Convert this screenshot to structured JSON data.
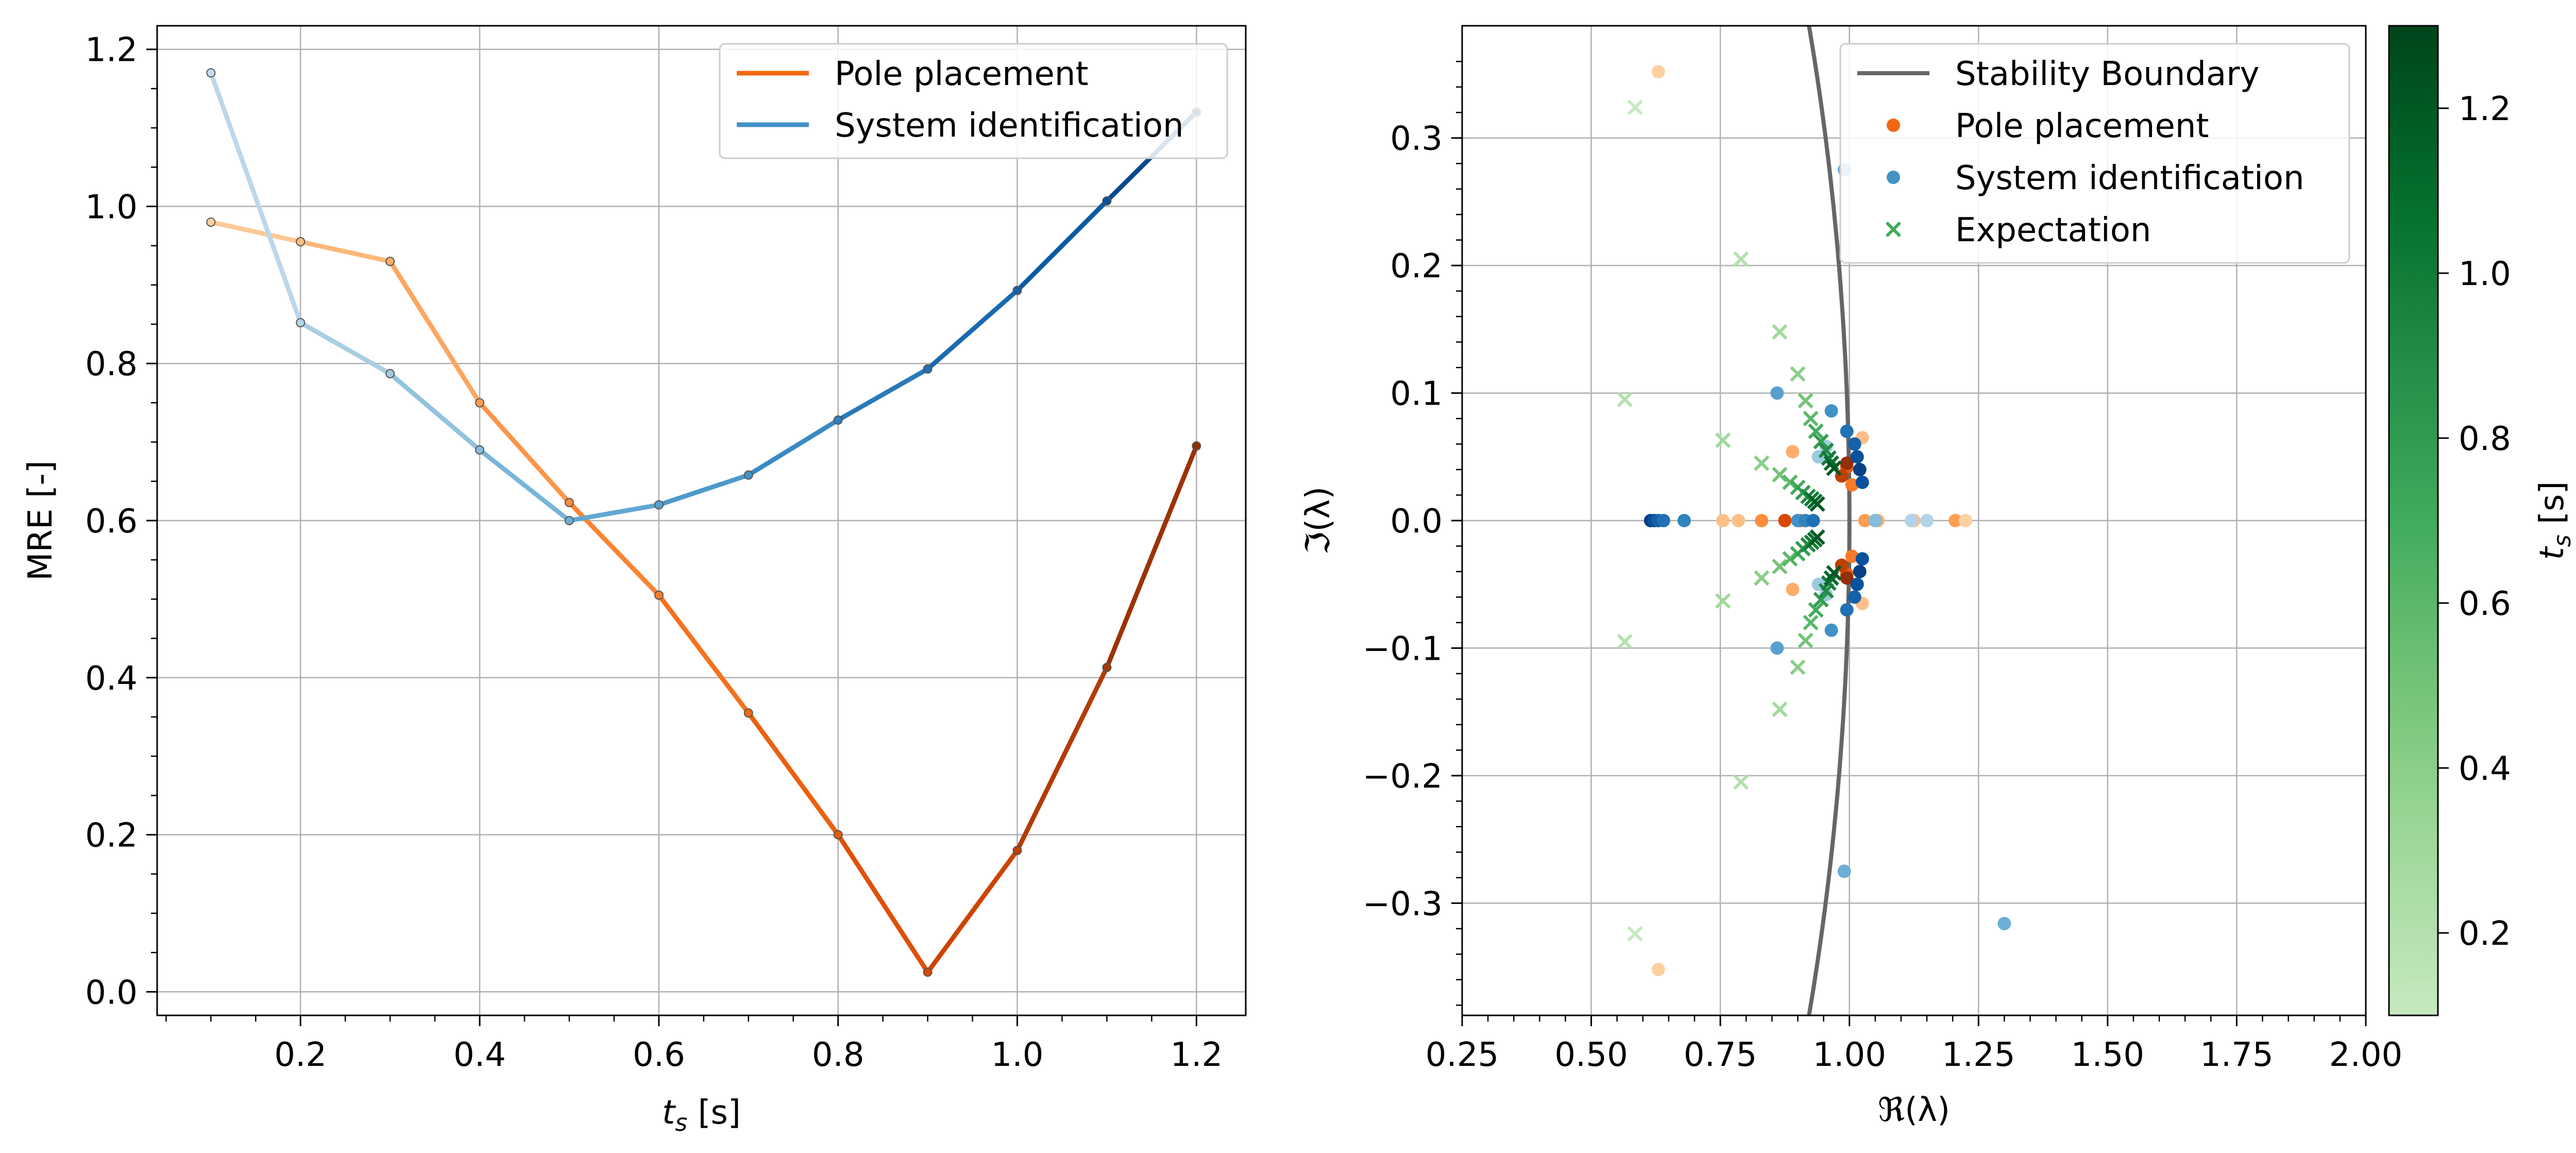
{
  "chart_data": [
    {
      "type": "line",
      "title": "",
      "xlabel": "t_s [s]",
      "ylabel": "MRE [-]",
      "xlim": [
        0.04,
        1.255
      ],
      "ylim": [
        -0.03,
        1.23
      ],
      "xticks": [
        0.2,
        0.4,
        0.6,
        0.8,
        1.0,
        1.2
      ],
      "xtick_labels": [
        "0.2",
        "0.4",
        "0.6",
        "0.8",
        "1.0",
        "1.2"
      ],
      "yticks": [
        0.0,
        0.2,
        0.4,
        0.6,
        0.8,
        1.0,
        1.2
      ],
      "ytick_labels": [
        "0.0",
        "0.2",
        "0.4",
        "0.6",
        "0.8",
        "1.0",
        "1.2"
      ],
      "grid": true,
      "legend_position": "top-right",
      "x": [
        0.1,
        0.2,
        0.3,
        0.4,
        0.5,
        0.6,
        0.7,
        0.8,
        0.9,
        1.0,
        1.1,
        1.2
      ],
      "series": [
        {
          "name": "Pole placement",
          "legend_color": "#f16913",
          "colormap": "Oranges",
          "values": [
            0.98,
            0.955,
            0.93,
            0.75,
            0.623,
            0.505,
            0.355,
            0.2,
            0.025,
            0.18,
            0.413,
            0.695
          ]
        },
        {
          "name": "System identification",
          "legend_color": "#4292c6",
          "colormap": "Blues",
          "values": [
            1.17,
            0.852,
            0.787,
            0.69,
            0.6,
            0.62,
            0.658,
            0.728,
            0.793,
            0.893,
            1.007,
            1.12
          ]
        }
      ]
    },
    {
      "type": "scatter",
      "title": "",
      "xlabel": "ℜ(λ)",
      "ylabel": "ℑ(λ)",
      "xlim": [
        0.25,
        2.0
      ],
      "ylim": [
        -0.388,
        0.388
      ],
      "xticks": [
        0.25,
        0.5,
        0.75,
        1.0,
        1.25,
        1.5,
        1.75,
        2.0
      ],
      "xtick_labels": [
        "0.25",
        "0.50",
        "0.75",
        "1.00",
        "1.25",
        "1.50",
        "1.75",
        "2.00"
      ],
      "yticks": [
        -0.3,
        -0.2,
        -0.1,
        0.0,
        0.1,
        0.2,
        0.3
      ],
      "ytick_labels": [
        "−0.3",
        "−0.2",
        "−0.1",
        "0.0",
        "0.1",
        "0.2",
        "0.3"
      ],
      "grid": true,
      "legend_position": "top-right",
      "stability_boundary": {
        "name": "Stability Boundary",
        "color": "#666666",
        "shape": "unit circle"
      },
      "series": [
        {
          "name": "Pole placement",
          "legend_color": "#f16913",
          "colormap": "Oranges",
          "points": [
            {
              "x": 0.63,
              "y": 0.352,
              "t": 0.1
            },
            {
              "x": 0.63,
              "y": -0.352,
              "t": 0.1
            },
            {
              "x": 0.89,
              "y": 0.054,
              "t": 0.3
            },
            {
              "x": 0.89,
              "y": -0.054,
              "t": 0.3
            },
            {
              "x": 0.755,
              "y": 0.0,
              "t": 0.2
            },
            {
              "x": 0.785,
              "y": 0.0,
              "t": 0.2
            },
            {
              "x": 1.025,
              "y": 0.065,
              "t": 0.2
            },
            {
              "x": 1.025,
              "y": -0.065,
              "t": 0.2
            },
            {
              "x": 0.83,
              "y": 0.0,
              "t": 0.5
            },
            {
              "x": 0.875,
              "y": 0.0,
              "t": 0.9
            },
            {
              "x": 0.905,
              "y": 0.0,
              "t": 0.7
            },
            {
              "x": 0.995,
              "y": 0.042,
              "t": 0.8
            },
            {
              "x": 0.995,
              "y": -0.042,
              "t": 0.8
            },
            {
              "x": 0.985,
              "y": 0.035,
              "t": 1.0
            },
            {
              "x": 0.985,
              "y": -0.035,
              "t": 1.0
            },
            {
              "x": 0.995,
              "y": 0.045,
              "t": 1.2
            },
            {
              "x": 0.995,
              "y": -0.045,
              "t": 1.2
            },
            {
              "x": 1.005,
              "y": 0.028,
              "t": 0.6
            },
            {
              "x": 1.005,
              "y": -0.028,
              "t": 0.6
            },
            {
              "x": 1.03,
              "y": 0.0,
              "t": 0.4
            },
            {
              "x": 1.055,
              "y": 0.0,
              "t": 0.3
            },
            {
              "x": 1.125,
              "y": 0.0,
              "t": 0.2
            },
            {
              "x": 1.205,
              "y": 0.0,
              "t": 0.4
            },
            {
              "x": 1.225,
              "y": 0.0,
              "t": 0.1
            }
          ]
        },
        {
          "name": "System identification",
          "legend_color": "#4292c6",
          "colormap": "Blues",
          "points": [
            {
              "x": 0.99,
              "y": 0.275,
              "t": 0.5
            },
            {
              "x": 0.99,
              "y": -0.275,
              "t": 0.5
            },
            {
              "x": 1.3,
              "y": -0.316,
              "t": 0.5
            },
            {
              "x": 0.86,
              "y": 0.1,
              "t": 0.6
            },
            {
              "x": 0.86,
              "y": -0.1,
              "t": 0.6
            },
            {
              "x": 0.965,
              "y": 0.086,
              "t": 0.7
            },
            {
              "x": 0.965,
              "y": -0.086,
              "t": 0.7
            },
            {
              "x": 0.94,
              "y": 0.05,
              "t": 0.3
            },
            {
              "x": 0.94,
              "y": -0.05,
              "t": 0.3
            },
            {
              "x": 0.955,
              "y": 0.058,
              "t": 0.3
            },
            {
              "x": 0.955,
              "y": -0.058,
              "t": 0.3
            },
            {
              "x": 0.995,
              "y": 0.07,
              "t": 0.9
            },
            {
              "x": 0.995,
              "y": -0.07,
              "t": 0.9
            },
            {
              "x": 1.01,
              "y": 0.06,
              "t": 1.0
            },
            {
              "x": 1.01,
              "y": -0.06,
              "t": 1.0
            },
            {
              "x": 1.015,
              "y": 0.05,
              "t": 1.1
            },
            {
              "x": 1.015,
              "y": -0.05,
              "t": 1.1
            },
            {
              "x": 1.02,
              "y": 0.04,
              "t": 1.2
            },
            {
              "x": 1.02,
              "y": -0.04,
              "t": 1.2
            },
            {
              "x": 1.025,
              "y": 0.03,
              "t": 1.1
            },
            {
              "x": 1.025,
              "y": -0.03,
              "t": 1.1
            },
            {
              "x": 0.615,
              "y": 0.0,
              "t": 1.2
            },
            {
              "x": 0.622,
              "y": 0.0,
              "t": 1.1
            },
            {
              "x": 0.63,
              "y": 0.0,
              "t": 1.0
            },
            {
              "x": 0.64,
              "y": 0.0,
              "t": 0.9
            },
            {
              "x": 0.68,
              "y": 0.0,
              "t": 0.8
            },
            {
              "x": 0.9,
              "y": 0.0,
              "t": 0.7
            },
            {
              "x": 0.915,
              "y": 0.0,
              "t": 0.8
            },
            {
              "x": 0.93,
              "y": 0.0,
              "t": 0.9
            },
            {
              "x": 1.05,
              "y": 0.0,
              "t": 0.4
            },
            {
              "x": 1.12,
              "y": 0.0,
              "t": 0.2
            },
            {
              "x": 1.15,
              "y": 0.0,
              "t": 0.2
            }
          ]
        },
        {
          "name": "Expectation",
          "legend_color": "#41ab5d",
          "colormap": "Greens",
          "marker": "x",
          "points": [
            {
              "x": 0.585,
              "y": 0.324,
              "t": 0.1
            },
            {
              "x": 0.585,
              "y": -0.324,
              "t": 0.1
            },
            {
              "x": 0.79,
              "y": 0.205,
              "t": 0.2
            },
            {
              "x": 0.79,
              "y": -0.205,
              "t": 0.2
            },
            {
              "x": 0.565,
              "y": 0.095,
              "t": 0.2
            },
            {
              "x": 0.565,
              "y": -0.095,
              "t": 0.2
            },
            {
              "x": 0.865,
              "y": 0.148,
              "t": 0.3
            },
            {
              "x": 0.865,
              "y": -0.148,
              "t": 0.3
            },
            {
              "x": 0.755,
              "y": 0.063,
              "t": 0.3
            },
            {
              "x": 0.755,
              "y": -0.063,
              "t": 0.3
            },
            {
              "x": 0.9,
              "y": 0.115,
              "t": 0.4
            },
            {
              "x": 0.9,
              "y": -0.115,
              "t": 0.4
            },
            {
              "x": 0.83,
              "y": 0.045,
              "t": 0.4
            },
            {
              "x": 0.83,
              "y": -0.045,
              "t": 0.4
            },
            {
              "x": 0.915,
              "y": 0.094,
              "t": 0.5
            },
            {
              "x": 0.915,
              "y": -0.094,
              "t": 0.5
            },
            {
              "x": 0.865,
              "y": 0.036,
              "t": 0.5
            },
            {
              "x": 0.865,
              "y": -0.036,
              "t": 0.5
            },
            {
              "x": 0.925,
              "y": 0.08,
              "t": 0.6
            },
            {
              "x": 0.925,
              "y": -0.08,
              "t": 0.6
            },
            {
              "x": 0.885,
              "y": 0.03,
              "t": 0.6
            },
            {
              "x": 0.885,
              "y": -0.03,
              "t": 0.6
            },
            {
              "x": 0.935,
              "y": 0.07,
              "t": 0.7
            },
            {
              "x": 0.935,
              "y": -0.07,
              "t": 0.7
            },
            {
              "x": 0.9,
              "y": 0.026,
              "t": 0.7
            },
            {
              "x": 0.9,
              "y": -0.026,
              "t": 0.7
            },
            {
              "x": 0.945,
              "y": 0.062,
              "t": 0.8
            },
            {
              "x": 0.945,
              "y": -0.062,
              "t": 0.8
            },
            {
              "x": 0.91,
              "y": 0.022,
              "t": 0.8
            },
            {
              "x": 0.91,
              "y": -0.022,
              "t": 0.8
            },
            {
              "x": 0.955,
              "y": 0.055,
              "t": 0.9
            },
            {
              "x": 0.955,
              "y": -0.055,
              "t": 0.9
            },
            {
              "x": 0.92,
              "y": 0.019,
              "t": 0.9
            },
            {
              "x": 0.92,
              "y": -0.019,
              "t": 0.9
            },
            {
              "x": 0.96,
              "y": 0.049,
              "t": 1.0
            },
            {
              "x": 0.96,
              "y": -0.049,
              "t": 1.0
            },
            {
              "x": 0.927,
              "y": 0.017,
              "t": 1.0
            },
            {
              "x": 0.927,
              "y": -0.017,
              "t": 1.0
            },
            {
              "x": 0.965,
              "y": 0.045,
              "t": 1.1
            },
            {
              "x": 0.965,
              "y": -0.045,
              "t": 1.1
            },
            {
              "x": 0.933,
              "y": 0.015,
              "t": 1.1
            },
            {
              "x": 0.933,
              "y": -0.015,
              "t": 1.1
            },
            {
              "x": 0.97,
              "y": 0.041,
              "t": 1.2
            },
            {
              "x": 0.97,
              "y": -0.041,
              "t": 1.2
            },
            {
              "x": 0.938,
              "y": 0.013,
              "t": 1.2
            },
            {
              "x": 0.938,
              "y": -0.013,
              "t": 1.2
            }
          ]
        }
      ],
      "colorbar": {
        "label": "t_s [s]",
        "colormap": "Greens",
        "range": [
          0.1,
          1.3
        ],
        "ticks": [
          0.2,
          0.4,
          0.6,
          0.8,
          1.0,
          1.2
        ],
        "tick_labels": [
          "0.2",
          "0.4",
          "0.6",
          "0.8",
          "1.0",
          "1.2"
        ]
      }
    }
  ]
}
